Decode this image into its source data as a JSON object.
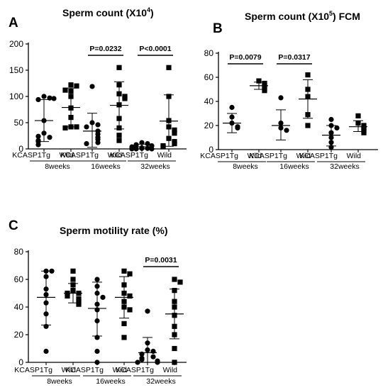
{
  "chart_data": [
    {
      "type": "scatter",
      "panel_letter": "A",
      "title": "Sperm count (X10",
      "title_sup": "4",
      "title_suffix": ")",
      "ylim": [
        0,
        200
      ],
      "yticks": [
        0,
        50,
        100,
        150,
        200
      ],
      "groups": [
        {
          "period": "8weeks",
          "kc": {
            "label": "KCASP1Tg",
            "points": [
              100,
              97,
              94,
              96,
              54,
              30,
              22,
              24,
              16,
              14,
              8
            ],
            "mean": 54,
            "sd_low": 14,
            "sd_high": 94
          },
          "wild": {
            "label": "Wild",
            "points": [
              122,
              120,
              110,
              112,
              100,
              78,
              60,
              42,
              42,
              40
            ],
            "mean": 79,
            "sd_low": 42,
            "sd_high": 116
          },
          "pvalue": ""
        },
        {
          "period": "16weeks",
          "kc": {
            "label": "KCASP1Tg",
            "points": [
              119,
              50,
              46,
              42,
              34,
              28,
              22,
              18,
              12,
              10
            ],
            "mean": 34,
            "sd_low": 3,
            "sd_high": 68
          },
          "wild": {
            "label": "Wild",
            "points": [
              155,
              122,
              105,
              100,
              96,
              84,
              58,
              40,
              26,
              16
            ],
            "mean": 83,
            "sd_low": 38,
            "sd_high": 128
          },
          "pvalue": "P=0.0232"
        },
        {
          "period": "32weeks",
          "kc": {
            "label": "KCASP1Tg",
            "points": [
              12,
              10,
              8,
              6,
              4,
              3,
              2,
              1,
              1,
              0,
              0,
              0
            ],
            "mean": 4,
            "sd_low": 0,
            "sd_high": 9
          },
          "wild": {
            "label": "Wild",
            "points": [
              155,
              100,
              54,
              42,
              36,
              30,
              20,
              14,
              10,
              6,
              4
            ],
            "mean": 53,
            "sd_low": 5,
            "sd_high": 103
          },
          "pvalue": "P<0.0001"
        }
      ]
    },
    {
      "type": "scatter",
      "panel_letter": "B",
      "title": "Sperm count (X10",
      "title_sup": "5",
      "title_suffix": ")  FCM",
      "ylim": [
        0,
        80
      ],
      "yticks": [
        0,
        20,
        40,
        60,
        80
      ],
      "groups": [
        {
          "period": "8weeks",
          "kc": {
            "label": "KCASP1Tg",
            "points": [
              35,
              27,
              22,
              19,
              18
            ],
            "mean": 22,
            "sd_low": 14,
            "sd_high": 30
          },
          "wild": {
            "label": "Wild",
            "points": [
              57,
              55,
              53,
              51,
              49
            ],
            "mean": 53,
            "sd_low": 50,
            "sd_high": 56
          },
          "pvalue": "P=0.0079"
        },
        {
          "period": "16weeks",
          "kc": {
            "label": "KCASP1Tg",
            "points": [
              43,
              22,
              18,
              16
            ],
            "mean": 20,
            "sd_low": 8,
            "sd_high": 33
          },
          "wild": {
            "label": "Wild",
            "points": [
              62,
              50,
              44,
              29,
              20
            ],
            "mean": 42,
            "sd_low": 26,
            "sd_high": 58
          },
          "pvalue": "P=0.0317"
        },
        {
          "period": "32weeks",
          "kc": {
            "label": "KCASP1Tg",
            "points": [
              25,
              20,
              18,
              14,
              10,
              6,
              2
            ],
            "mean": 12,
            "sd_low": 3,
            "sd_high": 20
          },
          "wild": {
            "label": "Wild",
            "points": [
              28,
              22,
              20,
              18,
              16,
              14
            ],
            "mean": 19,
            "sd_low": 15,
            "sd_high": 24
          },
          "pvalue": ""
        }
      ]
    },
    {
      "type": "scatter",
      "panel_letter": "C",
      "title": "Sperm motility rate (%)",
      "title_sup": "",
      "title_suffix": "",
      "ylim": [
        0,
        80
      ],
      "yticks": [
        0,
        20,
        40,
        60,
        80
      ],
      "groups": [
        {
          "period": "8weeks",
          "kc": {
            "label": "KCASP1Tg",
            "points": [
              66,
              66,
              62,
              53,
              49,
              43,
              35,
              26,
              8
            ],
            "mean": 47,
            "sd_low": 27,
            "sd_high": 66
          },
          "wild": {
            "label": "Wild",
            "points": [
              66,
              60,
              56,
              52,
              50,
              50,
              48,
              46,
              44,
              42
            ],
            "mean": 50,
            "sd_low": 43,
            "sd_high": 57
          },
          "pvalue": ""
        },
        {
          "period": "16weeks",
          "kc": {
            "label": "KCASP1Tg",
            "points": [
              60,
              55,
              50,
              47,
              42,
              38,
              30,
              18,
              8,
              0
            ],
            "mean": 39,
            "sd_low": 19,
            "sd_high": 58
          },
          "wild": {
            "label": "Wild",
            "points": [
              66,
              64,
              56,
              50,
              48,
              44,
              40,
              38,
              28,
              18
            ],
            "mean": 47,
            "sd_low": 32,
            "sd_high": 62
          },
          "pvalue": ""
        },
        {
          "period": "32weeks",
          "kc": {
            "label": "KCASP1Tg",
            "points": [
              37,
              14,
              9,
              8,
              6,
              4,
              3,
              2,
              1,
              0,
              0
            ],
            "mean": 7,
            "sd_low": 0,
            "sd_high": 18
          },
          "wild": {
            "label": "Wild",
            "points": [
              60,
              58,
              52,
              44,
              40,
              34,
              26,
              20,
              10,
              0
            ],
            "mean": 35,
            "sd_low": 17,
            "sd_high": 53
          },
          "pvalue": "P=0.0031"
        }
      ]
    }
  ]
}
